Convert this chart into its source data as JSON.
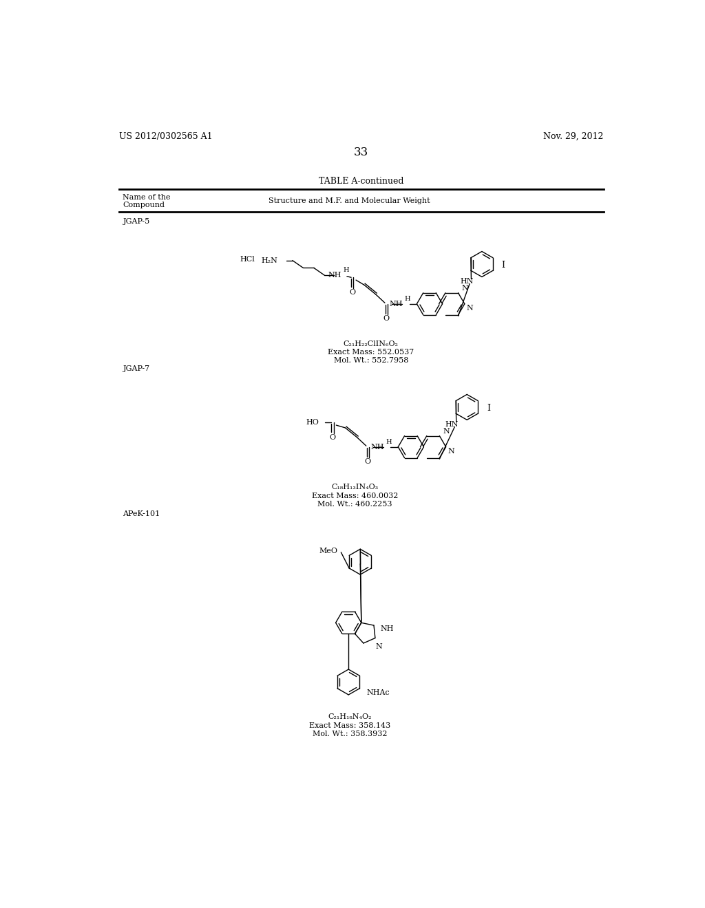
{
  "bg_color": "#ffffff",
  "header_left": "US 2012/0302565 A1",
  "header_right": "Nov. 29, 2012",
  "page_number": "33",
  "table_title": "TABLE A-continued",
  "col1_header1": "Name of the",
  "col1_header2": "Compound",
  "col2_header": "Structure and M.F. and Molecular Weight",
  "compound1_name": "JGAP-5",
  "compound1_formula": "C₂₁H₂₂ClIN₆O₂",
  "compound1_exact_mass": "Exact Mass: 552.0537",
  "compound1_mol_wt": "Mol. Wt.: 552.7958",
  "compound2_name": "JGAP-7",
  "compound2_formula": "C₁₈H₁₃IN₄O₃",
  "compound2_exact_mass": "Exact Mass: 460.0032",
  "compound2_mol_wt": "Mol. Wt.: 460.2253",
  "compound3_name": "APeK-101",
  "compound3_formula": "C₂₁H₁₈N₄O₂",
  "compound3_exact_mass": "Exact Mass: 358.143",
  "compound3_mol_wt": "Mol. Wt.: 358.3932",
  "font_size_small": 8.5,
  "font_size_body": 9,
  "font_size_label": 8,
  "font_size_page": 11
}
